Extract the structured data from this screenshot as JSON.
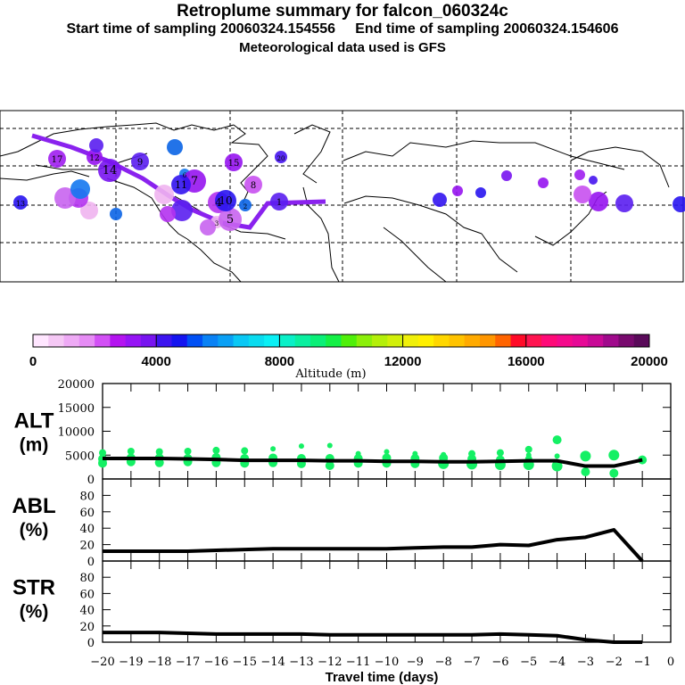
{
  "header": {
    "title": "Retroplume summary for falcon_060324c",
    "sampling_line": "Start time of sampling 20060324.154556     End time of sampling 20060324.154606",
    "met_line": "Meteorological data used is GFS"
  },
  "map": {
    "description": "Retroplume trajectory map, dashed lat/lon grid, coloured circles labelled with travel day",
    "markers": [
      {
        "label": "1",
        "color": "#5a1ef0"
      },
      {
        "label": "2",
        "color": "#0a64e6"
      },
      {
        "label": "3",
        "color": "#f0b4f0"
      },
      {
        "label": "4",
        "color": "#b432f0"
      },
      {
        "label": "5",
        "color": "#c864f0"
      },
      {
        "label": "6",
        "color": "#1478f0"
      },
      {
        "label": "7",
        "color": "#9614f0"
      },
      {
        "label": "8",
        "color": "#c850f0"
      },
      {
        "label": "9",
        "color": "#5a1ef0"
      },
      {
        "label": "10",
        "color": "#2814f0"
      },
      {
        "label": "11",
        "color": "#3214f0"
      },
      {
        "label": "12",
        "color": "#9614f0"
      },
      {
        "label": "13",
        "color": "#2814f0"
      },
      {
        "label": "14",
        "color": "#7814f0"
      },
      {
        "label": "15",
        "color": "#9614f0"
      },
      {
        "label": "17",
        "color": "#a01ef0"
      },
      {
        "label": "20",
        "color": "#4614f0"
      }
    ]
  },
  "colorbar": {
    "label": "Altitude (m)",
    "ticks": [
      "0",
      "4000",
      "8000",
      "12000",
      "16000",
      "20000"
    ],
    "colors": [
      "#ffe6ff",
      "#f5c8f5",
      "#eeaaf5",
      "#e68cf5",
      "#d250f5",
      "#b414f0",
      "#9614f5",
      "#7814f0",
      "#3c14f0",
      "#1414f0",
      "#0050f5",
      "#0a82f5",
      "#0aa0f5",
      "#0ac8f5",
      "#0adcf0",
      "#0af0f5",
      "#0af0c8",
      "#0af0a0",
      "#0af078",
      "#14f046",
      "#50f00a",
      "#8cf00a",
      "#b4f00a",
      "#d2f00a",
      "#f0f00a",
      "#fff000",
      "#ffd700",
      "#ffc300",
      "#ffaa00",
      "#ff9600",
      "#ff6400",
      "#ff0a28",
      "#ff1450",
      "#ff0a78",
      "#f50a8c",
      "#e60a96",
      "#c80a96",
      "#a00a8c",
      "#780a6e",
      "#5a0a5a"
    ]
  },
  "chart_data": [
    {
      "type": "scatter+line",
      "panel": "ALT",
      "ylabel": "ALT\n(m)",
      "ylabel_lines": [
        "ALT",
        "(m)"
      ],
      "xlim": [
        -20,
        0
      ],
      "ylim": [
        0,
        20000
      ],
      "yticks": [
        "0",
        "5000",
        "10000",
        "15000",
        "20000"
      ],
      "line": {
        "x": [
          -20,
          -19,
          -18,
          -17,
          -16,
          -15,
          -14,
          -13,
          -12,
          -11,
          -10,
          -9,
          -8,
          -7,
          -6,
          -5,
          -4,
          -3,
          -2,
          -1
        ],
        "y": [
          4300,
          4300,
          4300,
          4200,
          4100,
          3900,
          3900,
          3900,
          3800,
          3800,
          3700,
          3700,
          3600,
          3600,
          3700,
          3800,
          3800,
          2700,
          2700,
          4000
        ]
      },
      "points": {
        "color": "#14f064",
        "x": [
          -20,
          -20,
          -20,
          -19,
          -19,
          -19,
          -18,
          -18,
          -18,
          -17,
          -17,
          -17,
          -16,
          -16,
          -16,
          -15,
          -15,
          -15,
          -14,
          -14,
          -14,
          -13,
          -13,
          -13,
          -12,
          -12,
          -12,
          -11,
          -11,
          -11,
          -10,
          -10,
          -10,
          -9,
          -9,
          -9,
          -8,
          -8,
          -8,
          -7,
          -7,
          -7,
          -6,
          -6,
          -6,
          -5,
          -5,
          -5,
          -5,
          -4,
          -4,
          -4,
          -3,
          -3,
          -2,
          -2,
          -1
        ],
        "y": [
          5500,
          4200,
          3300,
          5800,
          4400,
          3600,
          5700,
          4400,
          3400,
          5800,
          4300,
          3600,
          6000,
          4500,
          3400,
          5900,
          4300,
          3300,
          6300,
          4400,
          3400,
          6900,
          4300,
          3200,
          7000,
          4300,
          2800,
          5300,
          4300,
          3300,
          5700,
          4400,
          3300,
          5300,
          4300,
          3200,
          5100,
          4400,
          3200,
          5300,
          4200,
          3100,
          5500,
          4000,
          3000,
          6200,
          5000,
          4200,
          3000,
          8200,
          4800,
          2700,
          4800,
          1500,
          5000,
          1200,
          4000
        ],
        "sizes": [
          3,
          4,
          4,
          3,
          4,
          4,
          3,
          4,
          4,
          3,
          4,
          4,
          3,
          4,
          4,
          3,
          4,
          4,
          2,
          4,
          4,
          2,
          4,
          4,
          2,
          4,
          4,
          2,
          4,
          4,
          2,
          4,
          4,
          2,
          4,
          4,
          2,
          4,
          5,
          3,
          4,
          5,
          3,
          4,
          5,
          3,
          2,
          3,
          5,
          4,
          2,
          5,
          5,
          4,
          5,
          4,
          4
        ]
      }
    },
    {
      "type": "line",
      "panel": "ABL",
      "ylabel_lines": [
        "ABL",
        "(%)"
      ],
      "xlim": [
        -20,
        0
      ],
      "ylim": [
        0,
        100
      ],
      "yticks": [
        "0",
        "20",
        "40",
        "60",
        "80"
      ],
      "x": [
        -20,
        -19,
        -18,
        -17,
        -16,
        -15,
        -14,
        -13,
        -12,
        -11,
        -10,
        -9,
        -8,
        -7,
        -6,
        -5,
        -4,
        -3,
        -2,
        -1
      ],
      "y": [
        12,
        12,
        12,
        12,
        13,
        14,
        15,
        15,
        15,
        15,
        15,
        16,
        17,
        17,
        20,
        19,
        26,
        29,
        38,
        0
      ]
    },
    {
      "type": "line",
      "panel": "STR",
      "ylabel_lines": [
        "STR",
        "(%)"
      ],
      "xlim": [
        -20,
        0
      ],
      "ylim": [
        0,
        100
      ],
      "yticks": [
        "0",
        "20",
        "40",
        "60",
        "80"
      ],
      "x": [
        -20,
        -19,
        -18,
        -17,
        -16,
        -15,
        -14,
        -13,
        -12,
        -11,
        -10,
        -9,
        -8,
        -7,
        -6,
        -5,
        -4,
        -3,
        -2,
        -1
      ],
      "y": [
        12,
        12,
        12,
        11,
        10,
        10,
        10,
        10,
        9,
        9,
        9,
        9,
        9,
        9,
        10,
        9,
        8,
        3,
        0,
        0
      ]
    }
  ],
  "xaxis": {
    "label": "Travel time (days)",
    "ticks": [
      "−20",
      "−19",
      "−18",
      "−17",
      "−16",
      "−15",
      "−14",
      "−13",
      "−12",
      "−11",
      "−10",
      "−9",
      "−8",
      "−7",
      "−6",
      "−5",
      "−4",
      "−3",
      "−2",
      "−1",
      "0"
    ]
  }
}
